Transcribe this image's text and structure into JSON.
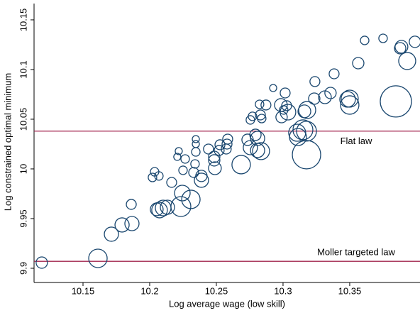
{
  "chart_data": {
    "type": "scatter",
    "x_label": "Log average wage (low skill)",
    "y_label": "Log constrained optimal minimum",
    "xlim": [
      10.1133,
      10.4027
    ],
    "ylim": [
      9.8857,
      10.1664
    ],
    "xticks": [
      10.15,
      10.2,
      10.25,
      10.3,
      10.35
    ],
    "yticks": [
      9.9,
      9.95,
      10,
      10.05,
      10.1,
      10.15
    ],
    "color": "#1a476f",
    "reference_color": "#a0224c",
    "reference_lines": [
      {
        "value": 10.038,
        "label": "Flat law"
      },
      {
        "value": 9.907,
        "label": "Moller targeted law"
      }
    ],
    "x": [
      10.1191,
      10.1612,
      10.1713,
      10.1793,
      10.1867,
      10.1862,
      10.2021,
      10.2037,
      10.2069,
      10.2053,
      10.2074,
      10.2101,
      10.2133,
      10.2165,
      10.2218,
      10.2207,
      10.2266,
      10.225,
      10.2234,
      10.2245,
      10.2309,
      10.233,
      10.234,
      10.2346,
      10.2346,
      10.2346,
      10.2388,
      10.2388,
      10.2441,
      10.2484,
      10.2489,
      10.2521,
      10.2527,
      10.2574,
      10.258,
      10.2585,
      10.2484,
      10.2686,
      10.2734,
      10.2755,
      10.2755,
      10.2771,
      10.2809,
      10.2809,
      10.2835,
      10.2793,
      10.2824,
      10.283,
      10.284,
      10.2872,
      10.2926,
      10.2984,
      10.2989,
      10.3005,
      10.3016,
      10.3027,
      10.3037,
      10.3106,
      10.3112,
      10.3149,
      10.3176,
      10.3176,
      10.3181,
      10.3234,
      10.316,
      10.3239,
      10.3314,
      10.3356,
      10.3383,
      10.3484,
      10.35,
      10.35,
      10.3564,
      10.3612,
      10.375,
      10.3846,
      10.3888,
      10.3878,
      10.3931,
      10.3989
    ],
    "y": [
      9.9057,
      9.91,
      9.9343,
      9.9436,
      9.945,
      9.9643,
      9.9914,
      9.9971,
      9.9929,
      9.9593,
      9.9586,
      9.9607,
      9.9614,
      9.9864,
      10.0179,
      10.0121,
      10.01,
      9.9986,
      9.9621,
      9.9757,
      9.9693,
      9.9964,
      10.005,
      10.03,
      10.025,
      10.0171,
      9.9886,
      9.9929,
      10.02,
      10.0121,
      10.0007,
      10.0186,
      10.0243,
      10.02,
      10.025,
      10.03,
      10.0086,
      10.0043,
      10.0293,
      10.0214,
      10.0493,
      10.0529,
      10.0186,
      10.0307,
      10.0179,
      10.0343,
      10.065,
      10.0543,
      10.0507,
      10.0643,
      10.0814,
      10.0643,
      10.0521,
      10.0593,
      10.0764,
      10.0636,
      10.0571,
      10.0364,
      10.0321,
      10.0393,
      10.0379,
      10.0143,
      10.0593,
      10.0707,
      10.0579,
      10.0879,
      10.0721,
      10.0764,
      10.0957,
      10.07,
      10.0643,
      10.0707,
      10.1064,
      10.1293,
      10.1314,
      10.0679,
      10.1229,
      10.1214,
      10.1086,
      10.1279
    ],
    "sizes": [
      8,
      13,
      10,
      10,
      10,
      7,
      6,
      6,
      6,
      9,
      11,
      11,
      10,
      7,
      5,
      5,
      6,
      6,
      14,
      11,
      13,
      7,
      6,
      5,
      5,
      6,
      10,
      8,
      7,
      8,
      9,
      7,
      7,
      7,
      7,
      7,
      8,
      13,
      8,
      10,
      6,
      6,
      10,
      10,
      12,
      8,
      6,
      7,
      6,
      7,
      5,
      9,
      8,
      6,
      7,
      7,
      11,
      12,
      12,
      14,
      14,
      20,
      12,
      8,
      9,
      7,
      9,
      8,
      7,
      11,
      13,
      12,
      8,
      6,
      6,
      22,
      9,
      8,
      12,
      8
    ]
  }
}
